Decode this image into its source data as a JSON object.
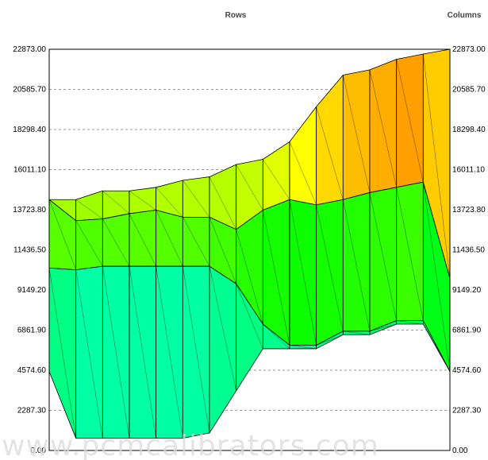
{
  "labels": {
    "rows": "Rows",
    "columns": "Columns"
  },
  "watermark": "www.pcmcalibrators.com",
  "chart_data": {
    "type": "surface-3d",
    "ylim": [
      0,
      22873
    ],
    "yticks": [
      "22873.00",
      "20585.70",
      "18298.40",
      "16011.10",
      "13723.80",
      "11436.50",
      "9149.20",
      "6861.90",
      "4574.60",
      "2287.30",
      "0.00"
    ],
    "grid": "horizontal dashed",
    "colorscale": [
      "#00a0ff",
      "#00ffff",
      "#00ff80",
      "#00ff00",
      "#80ff00",
      "#ffff00",
      "#ff8000",
      "#ff0000"
    ],
    "front_curve": [
      4500,
      700,
      700,
      700,
      700,
      700,
      1000,
      3400,
      5800,
      5800,
      5800,
      6600,
      6600,
      7200,
      7200,
      4500
    ],
    "layer_curve": [
      10400,
      10300,
      10500,
      10500,
      10500,
      10500,
      10500,
      9500,
      7200,
      6000,
      6000,
      6800,
      6800,
      7400,
      7400,
      4500
    ],
    "mid_curve": [
      14300,
      13100,
      13200,
      13500,
      13700,
      13300,
      13300,
      12600,
      13700,
      14300,
      14000,
      14300,
      14700,
      15000,
      15300,
      9800
    ],
    "back_curve": [
      14300,
      14300,
      14800,
      14800,
      15000,
      15400,
      15600,
      16300,
      16600,
      17600,
      19600,
      21400,
      21700,
      22300,
      22600,
      22873
    ]
  }
}
